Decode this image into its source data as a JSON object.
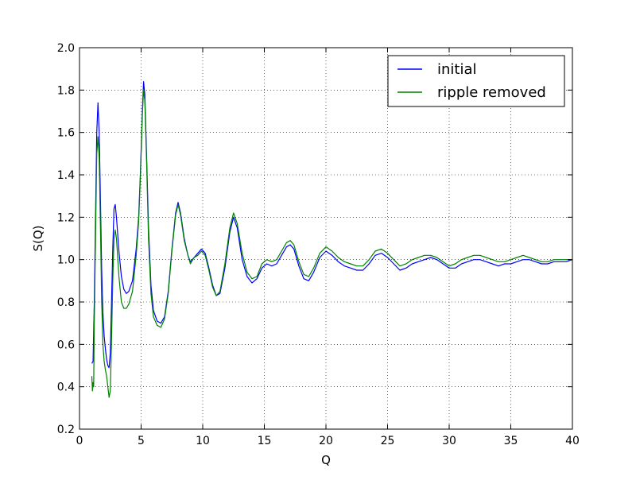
{
  "chart_data": {
    "type": "line",
    "title": "",
    "xlabel": "Q",
    "ylabel": "S(Q)",
    "xlim": [
      0,
      40
    ],
    "ylim": [
      0.2,
      2.0
    ],
    "xticks": [
      0,
      5,
      10,
      15,
      20,
      25,
      30,
      35,
      40
    ],
    "yticks": [
      0.2,
      0.4,
      0.6,
      0.8,
      1.0,
      1.2,
      1.4,
      1.6,
      1.8,
      2.0
    ],
    "xtick_labels": [
      "0",
      "5",
      "10",
      "15",
      "20",
      "25",
      "30",
      "35",
      "40"
    ],
    "ytick_labels": [
      "0.2",
      "0.4",
      "0.6",
      "0.8",
      "1.0",
      "1.2",
      "1.4",
      "1.6",
      "1.8",
      "2.0"
    ],
    "grid": true,
    "legend_position": "top-right",
    "series": [
      {
        "name": "initial",
        "color": "#0000ff",
        "points": [
          [
            1.0,
            0.51
          ],
          [
            1.1,
            0.52
          ],
          [
            1.2,
            0.8
          ],
          [
            1.3,
            1.2
          ],
          [
            1.4,
            1.6
          ],
          [
            1.5,
            1.74
          ],
          [
            1.6,
            1.6
          ],
          [
            1.7,
            1.28
          ],
          [
            1.8,
            0.95
          ],
          [
            1.9,
            0.75
          ],
          [
            2.0,
            0.64
          ],
          [
            2.1,
            0.58
          ],
          [
            2.2,
            0.53
          ],
          [
            2.3,
            0.5
          ],
          [
            2.4,
            0.49
          ],
          [
            2.5,
            0.56
          ],
          [
            2.6,
            0.8
          ],
          [
            2.7,
            1.05
          ],
          [
            2.8,
            1.24
          ],
          [
            2.9,
            1.26
          ],
          [
            3.0,
            1.2
          ],
          [
            3.2,
            1.04
          ],
          [
            3.4,
            0.92
          ],
          [
            3.6,
            0.86
          ],
          [
            3.8,
            0.84
          ],
          [
            4.0,
            0.85
          ],
          [
            4.3,
            0.9
          ],
          [
            4.6,
            1.05
          ],
          [
            4.8,
            1.2
          ],
          [
            4.95,
            1.42
          ],
          [
            5.1,
            1.7
          ],
          [
            5.2,
            1.84
          ],
          [
            5.3,
            1.78
          ],
          [
            5.45,
            1.48
          ],
          [
            5.6,
            1.15
          ],
          [
            5.8,
            0.88
          ],
          [
            6.0,
            0.76
          ],
          [
            6.3,
            0.71
          ],
          [
            6.6,
            0.7
          ],
          [
            6.9,
            0.73
          ],
          [
            7.2,
            0.85
          ],
          [
            7.5,
            1.05
          ],
          [
            7.8,
            1.22
          ],
          [
            8.0,
            1.27
          ],
          [
            8.2,
            1.22
          ],
          [
            8.5,
            1.1
          ],
          [
            8.8,
            1.02
          ],
          [
            9.0,
            0.99
          ],
          [
            9.3,
            1.01
          ],
          [
            9.6,
            1.03
          ],
          [
            9.9,
            1.05
          ],
          [
            10.2,
            1.03
          ],
          [
            10.5,
            0.96
          ],
          [
            10.8,
            0.88
          ],
          [
            11.1,
            0.83
          ],
          [
            11.4,
            0.84
          ],
          [
            11.8,
            0.96
          ],
          [
            12.2,
            1.13
          ],
          [
            12.5,
            1.2
          ],
          [
            12.8,
            1.15
          ],
          [
            13.2,
            1.0
          ],
          [
            13.6,
            0.92
          ],
          [
            14.0,
            0.89
          ],
          [
            14.4,
            0.91
          ],
          [
            14.8,
            0.96
          ],
          [
            15.2,
            0.98
          ],
          [
            15.6,
            0.97
          ],
          [
            16.0,
            0.98
          ],
          [
            16.4,
            1.02
          ],
          [
            16.8,
            1.06
          ],
          [
            17.1,
            1.07
          ],
          [
            17.4,
            1.05
          ],
          [
            17.8,
            0.97
          ],
          [
            18.2,
            0.91
          ],
          [
            18.6,
            0.9
          ],
          [
            19.0,
            0.94
          ],
          [
            19.5,
            1.01
          ],
          [
            20.0,
            1.04
          ],
          [
            20.5,
            1.02
          ],
          [
            21.0,
            0.99
          ],
          [
            21.5,
            0.97
          ],
          [
            22.0,
            0.96
          ],
          [
            22.5,
            0.95
          ],
          [
            23.0,
            0.95
          ],
          [
            23.5,
            0.98
          ],
          [
            24.0,
            1.02
          ],
          [
            24.5,
            1.03
          ],
          [
            25.0,
            1.01
          ],
          [
            25.5,
            0.98
          ],
          [
            26.0,
            0.95
          ],
          [
            26.5,
            0.96
          ],
          [
            27.0,
            0.98
          ],
          [
            27.5,
            0.99
          ],
          [
            28.0,
            1.0
          ],
          [
            28.5,
            1.01
          ],
          [
            29.0,
            1.0
          ],
          [
            29.5,
            0.98
          ],
          [
            30.0,
            0.96
          ],
          [
            30.5,
            0.96
          ],
          [
            31.0,
            0.98
          ],
          [
            31.5,
            0.99
          ],
          [
            32.0,
            1.0
          ],
          [
            32.5,
            1.0
          ],
          [
            33.0,
            0.99
          ],
          [
            33.5,
            0.98
          ],
          [
            34.0,
            0.97
          ],
          [
            34.5,
            0.98
          ],
          [
            35.0,
            0.98
          ],
          [
            35.5,
            0.99
          ],
          [
            36.0,
            1.0
          ],
          [
            36.5,
            1.0
          ],
          [
            37.0,
            0.99
          ],
          [
            37.5,
            0.98
          ],
          [
            38.0,
            0.98
          ],
          [
            38.5,
            0.99
          ],
          [
            39.0,
            0.99
          ],
          [
            39.5,
            0.99
          ],
          [
            40.0,
            1.0
          ]
        ]
      },
      {
        "name": "ripple removed",
        "color": "#008000",
        "points": [
          [
            1.0,
            0.45
          ],
          [
            1.05,
            0.38
          ],
          [
            1.1,
            0.42
          ],
          [
            1.15,
            0.4
          ],
          [
            1.2,
            0.7
          ],
          [
            1.3,
            1.1
          ],
          [
            1.4,
            1.5
          ],
          [
            1.5,
            1.58
          ],
          [
            1.6,
            1.48
          ],
          [
            1.7,
            1.15
          ],
          [
            1.8,
            0.8
          ],
          [
            1.9,
            0.6
          ],
          [
            2.0,
            0.52
          ],
          [
            2.1,
            0.48
          ],
          [
            2.2,
            0.45
          ],
          [
            2.3,
            0.4
          ],
          [
            2.4,
            0.35
          ],
          [
            2.5,
            0.38
          ],
          [
            2.6,
            0.62
          ],
          [
            2.7,
            0.9
          ],
          [
            2.8,
            1.1
          ],
          [
            2.9,
            1.14
          ],
          [
            3.0,
            1.1
          ],
          [
            3.2,
            0.92
          ],
          [
            3.4,
            0.8
          ],
          [
            3.6,
            0.77
          ],
          [
            3.8,
            0.77
          ],
          [
            4.0,
            0.79
          ],
          [
            4.3,
            0.85
          ],
          [
            4.6,
            1.02
          ],
          [
            4.8,
            1.18
          ],
          [
            4.95,
            1.4
          ],
          [
            5.1,
            1.68
          ],
          [
            5.2,
            1.8
          ],
          [
            5.3,
            1.75
          ],
          [
            5.45,
            1.45
          ],
          [
            5.6,
            1.1
          ],
          [
            5.8,
            0.84
          ],
          [
            6.0,
            0.73
          ],
          [
            6.3,
            0.69
          ],
          [
            6.6,
            0.68
          ],
          [
            6.9,
            0.72
          ],
          [
            7.2,
            0.84
          ],
          [
            7.5,
            1.04
          ],
          [
            7.8,
            1.21
          ],
          [
            8.0,
            1.26
          ],
          [
            8.2,
            1.21
          ],
          [
            8.5,
            1.09
          ],
          [
            8.8,
            1.02
          ],
          [
            9.0,
            0.98
          ],
          [
            9.3,
            1.01
          ],
          [
            9.6,
            1.02
          ],
          [
            9.9,
            1.04
          ],
          [
            10.2,
            1.02
          ],
          [
            10.5,
            0.95
          ],
          [
            10.8,
            0.87
          ],
          [
            11.1,
            0.83
          ],
          [
            11.4,
            0.85
          ],
          [
            11.8,
            0.98
          ],
          [
            12.2,
            1.15
          ],
          [
            12.5,
            1.22
          ],
          [
            12.8,
            1.17
          ],
          [
            13.2,
            1.03
          ],
          [
            13.6,
            0.94
          ],
          [
            14.0,
            0.91
          ],
          [
            14.4,
            0.92
          ],
          [
            14.8,
            0.98
          ],
          [
            15.2,
            1.0
          ],
          [
            15.6,
            0.99
          ],
          [
            16.0,
            1.0
          ],
          [
            16.4,
            1.04
          ],
          [
            16.8,
            1.08
          ],
          [
            17.1,
            1.09
          ],
          [
            17.4,
            1.07
          ],
          [
            17.8,
            0.99
          ],
          [
            18.2,
            0.93
          ],
          [
            18.6,
            0.92
          ],
          [
            19.0,
            0.96
          ],
          [
            19.5,
            1.03
          ],
          [
            20.0,
            1.06
          ],
          [
            20.5,
            1.04
          ],
          [
            21.0,
            1.01
          ],
          [
            21.5,
            0.99
          ],
          [
            22.0,
            0.98
          ],
          [
            22.5,
            0.97
          ],
          [
            23.0,
            0.97
          ],
          [
            23.5,
            1.0
          ],
          [
            24.0,
            1.04
          ],
          [
            24.5,
            1.05
          ],
          [
            25.0,
            1.03
          ],
          [
            25.5,
            1.0
          ],
          [
            26.0,
            0.97
          ],
          [
            26.5,
            0.98
          ],
          [
            27.0,
            1.0
          ],
          [
            27.5,
            1.01
          ],
          [
            28.0,
            1.02
          ],
          [
            28.5,
            1.02
          ],
          [
            29.0,
            1.01
          ],
          [
            29.5,
            0.99
          ],
          [
            30.0,
            0.97
          ],
          [
            30.5,
            0.98
          ],
          [
            31.0,
            1.0
          ],
          [
            31.5,
            1.01
          ],
          [
            32.0,
            1.02
          ],
          [
            32.5,
            1.02
          ],
          [
            33.0,
            1.01
          ],
          [
            33.5,
            1.0
          ],
          [
            34.0,
            0.99
          ],
          [
            34.5,
            0.99
          ],
          [
            35.0,
            1.0
          ],
          [
            35.5,
            1.01
          ],
          [
            36.0,
            1.02
          ],
          [
            36.5,
            1.01
          ],
          [
            37.0,
            1.0
          ],
          [
            37.5,
            0.99
          ],
          [
            38.0,
            0.99
          ],
          [
            38.5,
            1.0
          ],
          [
            39.0,
            1.0
          ],
          [
            39.5,
            1.0
          ],
          [
            40.0,
            1.0
          ]
        ]
      }
    ]
  }
}
